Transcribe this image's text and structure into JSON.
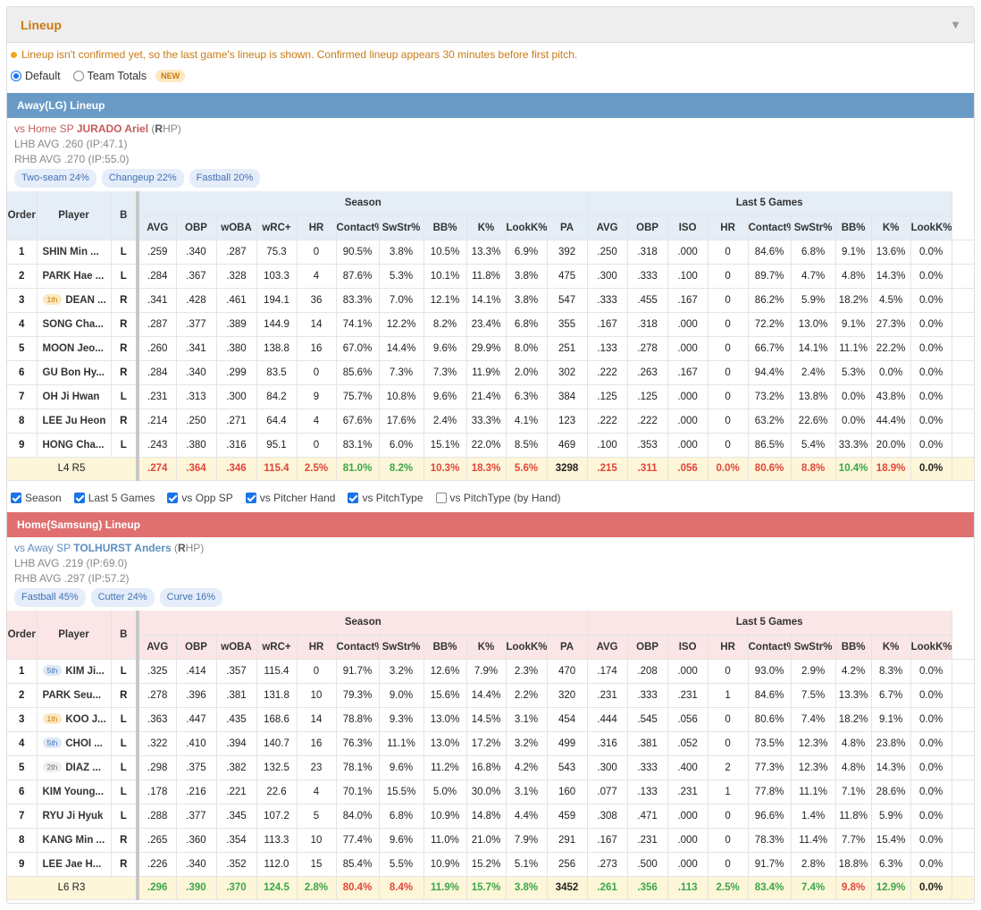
{
  "panel": {
    "title": "Lineup"
  },
  "notice": "Lineup isn't confirmed yet, so the last game's lineup is shown. Confirmed lineup appears 30 minutes before first pitch.",
  "view": {
    "default_label": "Default",
    "team_totals_label": "Team Totals",
    "new_badge": "NEW"
  },
  "headers": {
    "order": "Order",
    "player": "Player",
    "hand": "B",
    "season": "Season",
    "last5": "Last 5 Games",
    "season_cols": [
      "AVG",
      "OBP",
      "wOBA",
      "wRC+",
      "HR",
      "Contact%",
      "SwStr%",
      "BB%",
      "K%",
      "LookK%",
      "PA"
    ],
    "last5_cols": [
      "AVG",
      "OBP",
      "ISO",
      "HR",
      "Contact%",
      "SwStr%",
      "BB%",
      "K%",
      "LookK%"
    ]
  },
  "filters": [
    "Season",
    "Last 5 Games",
    "vs Opp SP",
    "vs Pitcher Hand",
    "vs PitchType",
    "vs PitchType (by Hand)"
  ],
  "filters_checked": [
    true,
    true,
    true,
    true,
    true,
    false
  ],
  "away": {
    "title": "Away(LG) Lineup",
    "sp_prefix": "vs Home SP",
    "sp_name": "JURADO Ariel",
    "hand_open": "(",
    "hand_letter": "R",
    "hand_rest": "HP)",
    "lhb": "LHB AVG .260 (IP:47.1)",
    "rhb": "RHB AVG .270 (IP:55.0)",
    "pitches": [
      "Two-seam 24%",
      "Changeup 22%",
      "Fastball 20%"
    ],
    "rows": [
      {
        "order": "1",
        "rank": "",
        "player": "SHIN Min ...",
        "hand": "L",
        "s": [
          ".259",
          ".340",
          ".287",
          "75.3",
          "0",
          "90.5%",
          "3.8%",
          "10.5%",
          "13.3%",
          "6.9%",
          "392"
        ],
        "l": [
          ".250",
          ".318",
          ".000",
          "0",
          "84.6%",
          "6.8%",
          "9.1%",
          "13.6%",
          "0.0%"
        ]
      },
      {
        "order": "2",
        "rank": "",
        "player": "PARK Hae ...",
        "hand": "L",
        "s": [
          ".284",
          ".367",
          ".328",
          "103.3",
          "4",
          "87.6%",
          "5.3%",
          "10.1%",
          "11.8%",
          "3.8%",
          "475"
        ],
        "l": [
          ".300",
          ".333",
          ".100",
          "0",
          "89.7%",
          "4.7%",
          "4.8%",
          "14.3%",
          "0.0%"
        ]
      },
      {
        "order": "3",
        "rank": "1th",
        "player": "DEAN ...",
        "hand": "R",
        "s": [
          ".341",
          ".428",
          ".461",
          "194.1",
          "36",
          "83.3%",
          "7.0%",
          "12.1%",
          "14.1%",
          "3.8%",
          "547"
        ],
        "l": [
          ".333",
          ".455",
          ".167",
          "0",
          "86.2%",
          "5.9%",
          "18.2%",
          "4.5%",
          "0.0%"
        ]
      },
      {
        "order": "4",
        "rank": "",
        "player": "SONG Cha...",
        "hand": "R",
        "s": [
          ".287",
          ".377",
          ".389",
          "144.9",
          "14",
          "74.1%",
          "12.2%",
          "8.2%",
          "23.4%",
          "6.8%",
          "355"
        ],
        "l": [
          ".167",
          ".318",
          ".000",
          "0",
          "72.2%",
          "13.0%",
          "9.1%",
          "27.3%",
          "0.0%"
        ]
      },
      {
        "order": "5",
        "rank": "",
        "player": "MOON Jeo...",
        "hand": "R",
        "s": [
          ".260",
          ".341",
          ".380",
          "138.8",
          "16",
          "67.0%",
          "14.4%",
          "9.6%",
          "29.9%",
          "8.0%",
          "251"
        ],
        "l": [
          ".133",
          ".278",
          ".000",
          "0",
          "66.7%",
          "14.1%",
          "11.1%",
          "22.2%",
          "0.0%"
        ]
      },
      {
        "order": "6",
        "rank": "",
        "player": "GU Bon Hy...",
        "hand": "R",
        "s": [
          ".284",
          ".340",
          ".299",
          "83.5",
          "0",
          "85.6%",
          "7.3%",
          "7.3%",
          "11.9%",
          "2.0%",
          "302"
        ],
        "l": [
          ".222",
          ".263",
          ".167",
          "0",
          "94.4%",
          "2.4%",
          "5.3%",
          "0.0%",
          "0.0%"
        ]
      },
      {
        "order": "7",
        "rank": "",
        "player": "OH Ji Hwan",
        "hand": "L",
        "s": [
          ".231",
          ".313",
          ".300",
          "84.2",
          "9",
          "75.7%",
          "10.8%",
          "9.6%",
          "21.4%",
          "6.3%",
          "384"
        ],
        "l": [
          ".125",
          ".125",
          ".000",
          "0",
          "73.2%",
          "13.8%",
          "0.0%",
          "43.8%",
          "0.0%"
        ]
      },
      {
        "order": "8",
        "rank": "",
        "player": "LEE Ju Heon",
        "hand": "R",
        "s": [
          ".214",
          ".250",
          ".271",
          "64.4",
          "4",
          "67.6%",
          "17.6%",
          "2.4%",
          "33.3%",
          "4.1%",
          "123"
        ],
        "l": [
          ".222",
          ".222",
          ".000",
          "0",
          "63.2%",
          "22.6%",
          "0.0%",
          "44.4%",
          "0.0%"
        ]
      },
      {
        "order": "9",
        "rank": "",
        "player": "HONG Cha...",
        "hand": "L",
        "s": [
          ".243",
          ".380",
          ".316",
          "95.1",
          "0",
          "83.1%",
          "6.0%",
          "15.1%",
          "22.0%",
          "8.5%",
          "469"
        ],
        "l": [
          ".100",
          ".353",
          ".000",
          "0",
          "86.5%",
          "5.4%",
          "33.3%",
          "20.0%",
          "0.0%"
        ]
      }
    ],
    "total": {
      "label_l": "L4",
      "label_r": "R5",
      "s": [
        ".274",
        ".364",
        ".346",
        "115.4",
        "2.5%",
        "81.0%",
        "8.2%",
        "10.3%",
        "18.3%",
        "5.6%",
        "3298"
      ],
      "l": [
        ".215",
        ".311",
        ".056",
        "0.0%",
        "80.6%",
        "8.8%",
        "10.4%",
        "18.9%",
        "0.0%"
      ]
    }
  },
  "home": {
    "title": "Home(Samsung) Lineup",
    "sp_prefix": "vs Away SP",
    "sp_name": "TOLHURST Anders",
    "hand_open": "(",
    "hand_letter": "R",
    "hand_rest": "HP)",
    "lhb": "LHB AVG .219 (IP:69.0)",
    "rhb": "RHB AVG .297 (IP:57.2)",
    "pitches": [
      "Fastball 45%",
      "Cutter 24%",
      "Curve 16%"
    ],
    "rows": [
      {
        "order": "1",
        "rank": "5th",
        "player": "KIM Ji...",
        "hand": "L",
        "s": [
          ".325",
          ".414",
          ".357",
          "115.4",
          "0",
          "91.7%",
          "3.2%",
          "12.6%",
          "7.9%",
          "2.3%",
          "470"
        ],
        "l": [
          ".174",
          ".208",
          ".000",
          "0",
          "93.0%",
          "2.9%",
          "4.2%",
          "8.3%",
          "0.0%"
        ]
      },
      {
        "order": "2",
        "rank": "",
        "player": "PARK Seu...",
        "hand": "R",
        "s": [
          ".278",
          ".396",
          ".381",
          "131.8",
          "10",
          "79.3%",
          "9.0%",
          "15.6%",
          "14.4%",
          "2.2%",
          "320"
        ],
        "l": [
          ".231",
          ".333",
          ".231",
          "1",
          "84.6%",
          "7.5%",
          "13.3%",
          "6.7%",
          "0.0%"
        ]
      },
      {
        "order": "3",
        "rank": "1th",
        "player": "KOO J...",
        "hand": "L",
        "s": [
          ".363",
          ".447",
          ".435",
          "168.6",
          "14",
          "78.8%",
          "9.3%",
          "13.0%",
          "14.5%",
          "3.1%",
          "454"
        ],
        "l": [
          ".444",
          ".545",
          ".056",
          "0",
          "80.6%",
          "7.4%",
          "18.2%",
          "9.1%",
          "0.0%"
        ]
      },
      {
        "order": "4",
        "rank": "5th",
        "player": "CHOI ...",
        "hand": "L",
        "s": [
          ".322",
          ".410",
          ".394",
          "140.7",
          "16",
          "76.3%",
          "11.1%",
          "13.0%",
          "17.2%",
          "3.2%",
          "499"
        ],
        "l": [
          ".316",
          ".381",
          ".052",
          "0",
          "73.5%",
          "12.3%",
          "4.8%",
          "23.8%",
          "0.0%"
        ]
      },
      {
        "order": "5",
        "rank": "2th",
        "player": "DIAZ ...",
        "hand": "L",
        "s": [
          ".298",
          ".375",
          ".382",
          "132.5",
          "23",
          "78.1%",
          "9.6%",
          "11.2%",
          "16.8%",
          "4.2%",
          "543"
        ],
        "l": [
          ".300",
          ".333",
          ".400",
          "2",
          "77.3%",
          "12.3%",
          "4.8%",
          "14.3%",
          "0.0%"
        ]
      },
      {
        "order": "6",
        "rank": "",
        "player": "KIM Young...",
        "hand": "L",
        "s": [
          ".178",
          ".216",
          ".221",
          "22.6",
          "4",
          "70.1%",
          "15.5%",
          "5.0%",
          "30.0%",
          "3.1%",
          "160"
        ],
        "l": [
          ".077",
          ".133",
          ".231",
          "1",
          "77.8%",
          "11.1%",
          "7.1%",
          "28.6%",
          "0.0%"
        ]
      },
      {
        "order": "7",
        "rank": "",
        "player": "RYU Ji Hyuk",
        "hand": "L",
        "s": [
          ".288",
          ".377",
          ".345",
          "107.2",
          "5",
          "84.0%",
          "6.8%",
          "10.9%",
          "14.8%",
          "4.4%",
          "459"
        ],
        "l": [
          ".308",
          ".471",
          ".000",
          "0",
          "96.6%",
          "1.4%",
          "11.8%",
          "5.9%",
          "0.0%"
        ]
      },
      {
        "order": "8",
        "rank": "",
        "player": "KANG Min ...",
        "hand": "R",
        "s": [
          ".265",
          ".360",
          ".354",
          "113.3",
          "10",
          "77.4%",
          "9.6%",
          "11.0%",
          "21.0%",
          "7.9%",
          "291"
        ],
        "l": [
          ".167",
          ".231",
          ".000",
          "0",
          "78.3%",
          "11.4%",
          "7.7%",
          "15.4%",
          "0.0%"
        ]
      },
      {
        "order": "9",
        "rank": "",
        "player": "LEE Jae H...",
        "hand": "R",
        "s": [
          ".226",
          ".340",
          ".352",
          "112.0",
          "15",
          "85.4%",
          "5.5%",
          "10.9%",
          "15.2%",
          "5.1%",
          "256"
        ],
        "l": [
          ".273",
          ".500",
          ".000",
          "0",
          "91.7%",
          "2.8%",
          "18.8%",
          "6.3%",
          "0.0%"
        ]
      }
    ],
    "total": {
      "label_l": "L6",
      "label_r": "R3",
      "s": [
        ".296",
        ".390",
        ".370",
        "124.5",
        "2.8%",
        "80.4%",
        "8.4%",
        "11.9%",
        "15.7%",
        "3.8%",
        "3452"
      ],
      "l": [
        ".261",
        ".356",
        ".113",
        "2.5%",
        "83.4%",
        "7.4%",
        "9.8%",
        "12.9%",
        "0.0%"
      ]
    }
  },
  "colors": {
    "good": "#3aa64a",
    "bad": "#e2453a",
    "away_bar": "#6a9ac6",
    "home_bar": "#e07070",
    "accent": "#c97a12"
  }
}
